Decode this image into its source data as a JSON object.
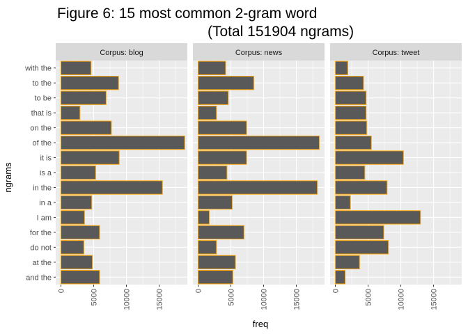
{
  "chart_data": {
    "type": "bar",
    "orientation": "horizontal",
    "title_line1": "Figure 6: 15 most common 2-gram word",
    "title_line2": "(Total 151904 ngrams)",
    "xlabel": "freq",
    "ylabel": "ngrams",
    "xlim": [
      -800,
      19300
    ],
    "x_ticks": [
      "0",
      "5000",
      "10000",
      "15000"
    ],
    "x_tick_values": [
      0,
      5000,
      10000,
      15000
    ],
    "categories": [
      "with the",
      "to the",
      "to be",
      "that is",
      "on the",
      "of the",
      "it is",
      "is a",
      "in the",
      "in a",
      "I am",
      "for the",
      "do not",
      "at the",
      "and the"
    ],
    "bar_fill": "#595959",
    "bar_stroke": "#FFA500",
    "panel_background": "#EBEBEB",
    "strip_background": "#D9D9D9",
    "grid": true,
    "panels": [
      {
        "strip_label": "Corpus: blog",
        "values": [
          4600,
          8800,
          6900,
          2900,
          7700,
          18900,
          8900,
          5300,
          15500,
          4700,
          3600,
          5900,
          3500,
          4800,
          5900
        ]
      },
      {
        "strip_label": "Corpus: news",
        "values": [
          4200,
          8500,
          4600,
          2800,
          7400,
          18500,
          7400,
          4400,
          18200,
          5200,
          1700,
          7000,
          2800,
          5700,
          5300
        ]
      },
      {
        "strip_label": "Corpus: tweet",
        "values": [
          1900,
          4300,
          4700,
          4700,
          4800,
          5500,
          10400,
          4500,
          7900,
          2300,
          13000,
          7400,
          8100,
          3700,
          1500
        ]
      }
    ]
  }
}
